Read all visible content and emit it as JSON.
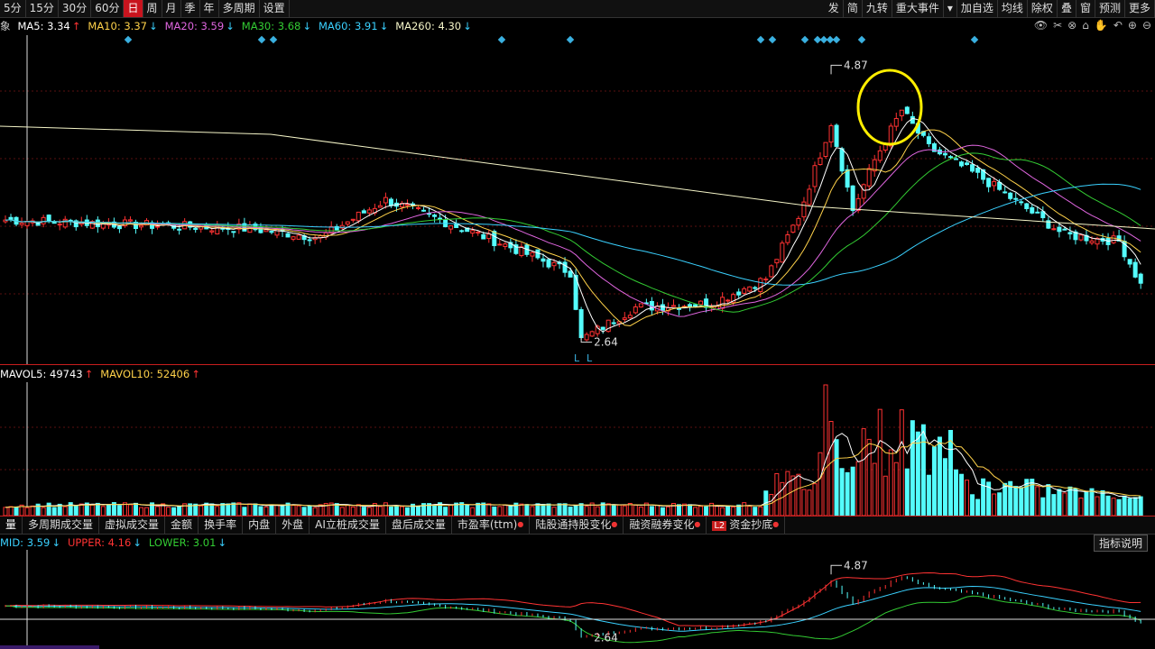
{
  "toolbar": {
    "periods": [
      "5分",
      "15分",
      "30分",
      "60分",
      "日",
      "周",
      "月",
      "季",
      "年",
      "多周期",
      "设置"
    ],
    "active": "日",
    "right_items": [
      "发",
      "简",
      "九转",
      "重大事件",
      "▾",
      "加自选",
      "均线",
      "除权",
      "叠",
      "窗",
      "预测",
      "更多"
    ]
  },
  "ma": {
    "prefix": "象",
    "items": [
      {
        "label": "MA5: 3.34",
        "arrow": "↑",
        "color": "#ffffff",
        "arrow_color": "#ff3333"
      },
      {
        "label": "MA10: 3.37",
        "arrow": "↓",
        "color": "#ffd24a",
        "arrow_color": "#3ad1ff"
      },
      {
        "label": "MA20: 3.59",
        "arrow": "↓",
        "color": "#e066e0",
        "arrow_color": "#3ad1ff"
      },
      {
        "label": "MA30: 3.68",
        "arrow": "↓",
        "color": "#33cc33",
        "arrow_color": "#3ad1ff"
      },
      {
        "label": "MA60: 3.91",
        "arrow": "↓",
        "color": "#3ad1ff",
        "arrow_color": "#3ad1ff"
      },
      {
        "label": "MA260: 4.30",
        "arrow": "↓",
        "color": "#f5f5c8",
        "arrow_color": "#3ad1ff"
      }
    ]
  },
  "price_marks": {
    "high": "4.87",
    "low": "2.64",
    "low_marker": "L"
  },
  "volume": {
    "items": [
      {
        "label": "MAVOL5: 49743",
        "arrow": "↑",
        "color": "#ffffff"
      },
      {
        "label": "MAVOL10: 52406",
        "arrow": "↑",
        "color": "#ffd24a"
      }
    ]
  },
  "tabs": [
    "量",
    "多周期成交量",
    "虚拟成交量",
    "金额",
    "换手率",
    "内盘",
    "外盘",
    "AI立桩成交量",
    "盘后成交量",
    "市盈率(ttm)",
    "陆股通持股变化",
    "融资融券变化",
    "资金抄底"
  ],
  "tab_badge": "L2",
  "boll": {
    "items": [
      {
        "label": "MID: 3.59",
        "arrow": "↓",
        "color": "#3ad1ff"
      },
      {
        "label": "UPPER: 4.16",
        "arrow": "↓",
        "color": "#ff3333"
      },
      {
        "label": "LOWER: 3.01",
        "arrow": "↓",
        "color": "#33cc33"
      }
    ],
    "help": "指标说明",
    "high": "4.87",
    "low": "2.64"
  }
}
